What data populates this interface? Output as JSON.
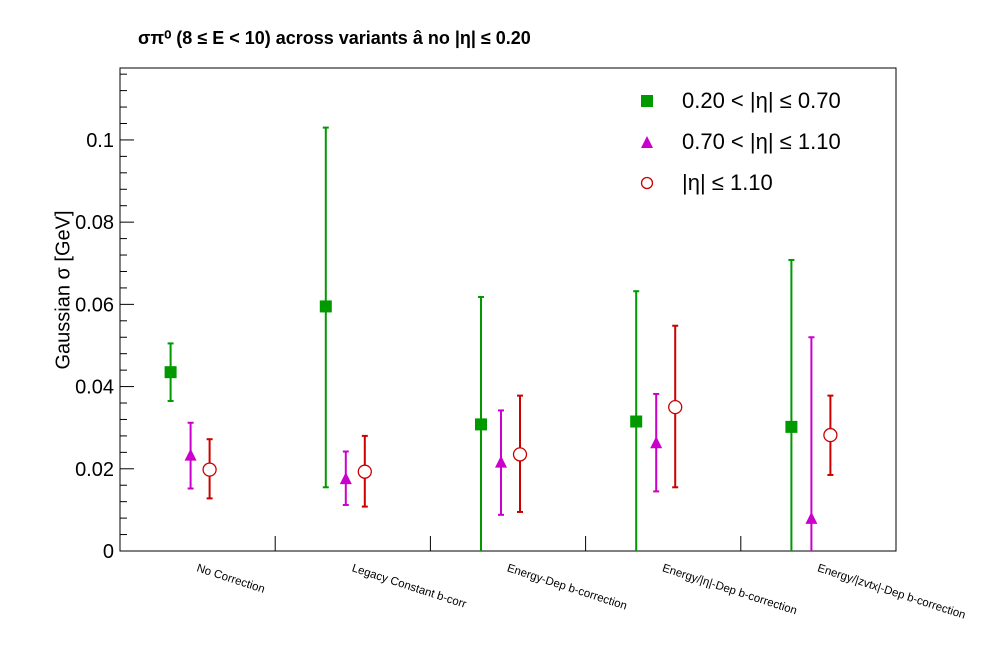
{
  "chart_data": {
    "type": "scatter",
    "title": "σπ⁰ (8 ≤ E < 10) across variants  â  no |η| ≤ 0.20",
    "ylabel": "Gaussian σ  [GeV]",
    "xlabel": "",
    "ylim": [
      0,
      0.1175
    ],
    "yticks": [
      "0",
      "0.02",
      "0.04",
      "0.06",
      "0.08",
      "0.1"
    ],
    "categories": [
      "No Correction",
      "Legacy Constant b-corr",
      "Energy-Dep b-correction",
      "Energy/|η|-Dep b-correction",
      "Energy/|zvtx|-Dep b-correction"
    ],
    "grid": false,
    "legend": "top-right",
    "series": [
      {
        "name": "0.20 < |η| ≤ 0.70",
        "marker": "square",
        "color": "#009900",
        "values": [
          0.0435,
          0.0595,
          0.0308,
          0.0315,
          0.0302
        ],
        "err_low": [
          0.0365,
          0.0155,
          0.0,
          0.0,
          0.0
        ],
        "err_high": [
          0.0505,
          0.103,
          0.0618,
          0.0632,
          0.0708
        ]
      },
      {
        "name": "0.70 < |η| ≤ 1.10",
        "marker": "triangle",
        "color": "#cc00cc",
        "values": [
          0.0232,
          0.0175,
          0.0215,
          0.0262,
          0.0078
        ],
        "err_low": [
          0.0152,
          0.0112,
          0.0088,
          0.0145,
          0.0
        ],
        "err_high": [
          0.0312,
          0.0242,
          0.0342,
          0.0382,
          0.052
        ]
      },
      {
        "name": "|η| ≤ 1.10",
        "marker": "open-circle",
        "color": "#cc0000",
        "values": [
          0.0198,
          0.0193,
          0.0235,
          0.035,
          0.0282
        ],
        "err_low": [
          0.0128,
          0.0108,
          0.0095,
          0.0155,
          0.0185
        ],
        "err_high": [
          0.0272,
          0.028,
          0.0378,
          0.0548,
          0.0378
        ]
      }
    ]
  }
}
